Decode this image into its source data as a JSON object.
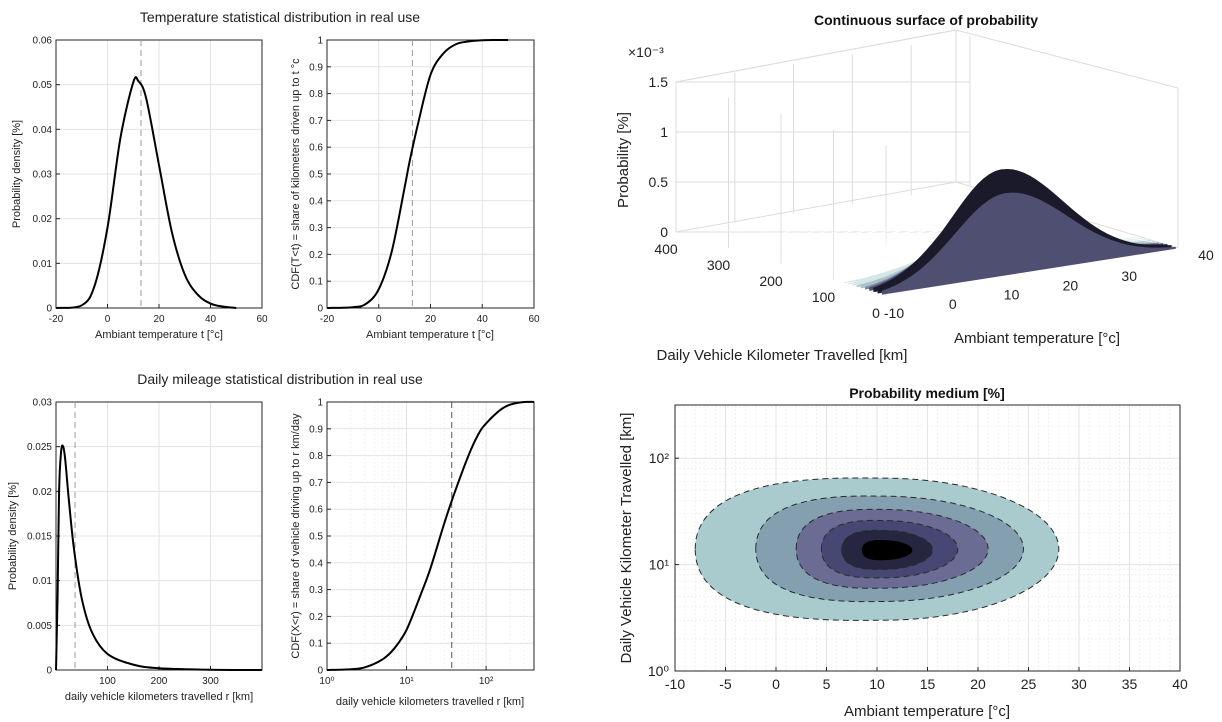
{
  "chart_data": [
    {
      "id": "temp",
      "type": "line",
      "title": "Temperature statistical distribution in real use",
      "panels": [
        {
          "id": "pdf",
          "xlabel": "Ambiant temperature t [°c]",
          "ylabel": "Probability density [%]",
          "xlim": [
            -20,
            60
          ],
          "ylim": [
            0,
            0.06
          ],
          "xticks": [
            "-20",
            "0",
            "20",
            "40",
            "60"
          ],
          "yticks": [
            "0",
            "0.01",
            "0.02",
            "0.03",
            "0.04",
            "0.05",
            "0.06"
          ],
          "x": [
            -20,
            -10,
            -5,
            0,
            5,
            10,
            12,
            15,
            20,
            25,
            30,
            35,
            40,
            45,
            50
          ],
          "y": [
            0,
            0.0006,
            0.005,
            0.018,
            0.038,
            0.0505,
            0.0508,
            0.047,
            0.032,
            0.017,
            0.0075,
            0.003,
            0.001,
            0.0003,
            0
          ],
          "marker_x": 13
        },
        {
          "id": "cdf",
          "xlabel": "Ambiant temperature t [°c]",
          "ylabel": "CDF(T<t) = share of kilometers driven up to t °c",
          "xlim": [
            -20,
            60
          ],
          "ylim": [
            0,
            1
          ],
          "xticks": [
            "-20",
            "0",
            "20",
            "40",
            "60"
          ],
          "yticks": [
            "0",
            "0.1",
            "0.2",
            "0.3",
            "0.4",
            "0.5",
            "0.6",
            "0.7",
            "0.8",
            "0.9",
            "1"
          ],
          "x": [
            -20,
            -10,
            -5,
            0,
            5,
            10,
            12,
            15,
            20,
            25,
            30,
            35,
            40,
            45,
            50
          ],
          "y": [
            0,
            0.003,
            0.015,
            0.07,
            0.21,
            0.45,
            0.55,
            0.68,
            0.87,
            0.95,
            0.985,
            0.995,
            0.999,
            1,
            1
          ],
          "marker_x": 13
        }
      ]
    },
    {
      "id": "mileage",
      "type": "line",
      "title": "Daily mileage statistical distribution in real use",
      "panels": [
        {
          "id": "pdf",
          "xlabel": "daily vehicle kilometers travelled r [km]",
          "ylabel": "Probability density [%]",
          "xlim": [
            0,
            400
          ],
          "ylim": [
            0,
            0.03
          ],
          "xticks": [
            "100",
            "200",
            "300"
          ],
          "yticks": [
            "0",
            "0.005",
            "0.01",
            "0.015",
            "0.02",
            "0.025",
            "0.03"
          ],
          "x": [
            0,
            3,
            6,
            10,
            14,
            18,
            25,
            35,
            50,
            70,
            100,
            150,
            200,
            300,
            400
          ],
          "y": [
            0,
            0.008,
            0.02,
            0.0245,
            0.025,
            0.0235,
            0.019,
            0.0135,
            0.008,
            0.0042,
            0.0018,
            0.0006,
            0.0002,
            3e-05,
            0
          ],
          "marker_x": 37
        },
        {
          "id": "cdf",
          "scale_x": "log",
          "xlabel": "daily vehicle kilometers travelled r [km]",
          "ylabel": "CDF(X<r) = share of vehicle driving up to r km/day",
          "xlim": [
            1,
            400
          ],
          "ylim": [
            0,
            1
          ],
          "xticks": [
            "10⁰",
            "10¹",
            "10²"
          ],
          "yticks": [
            "0",
            "0.1",
            "0.2",
            "0.3",
            "0.4",
            "0.5",
            "0.6",
            "0.7",
            "0.8",
            "0.9",
            "1"
          ],
          "x": [
            1,
            2,
            3,
            5,
            7,
            10,
            15,
            20,
            30,
            40,
            60,
            80,
            100,
            150,
            200,
            300,
            400
          ],
          "y": [
            0,
            0.003,
            0.01,
            0.04,
            0.08,
            0.15,
            0.28,
            0.38,
            0.55,
            0.66,
            0.8,
            0.88,
            0.92,
            0.97,
            0.99,
            1,
            1
          ],
          "marker_x": 37
        }
      ]
    },
    {
      "id": "surface",
      "type": "surface",
      "title": "Continuous surface of probability",
      "zlabel": "Probability [%]",
      "xlabel": "Ambiant temperature [°c]",
      "ylabel": "Daily Vehicle Kilometer Travelled [km]",
      "exponent": "×10⁻³",
      "zticks": [
        "0",
        "0.5",
        "1",
        "1.5"
      ],
      "xticks": [
        "-10",
        "0",
        "10",
        "20",
        "30",
        "40"
      ],
      "yticks": [
        "0",
        "100",
        "200",
        "300",
        "400"
      ],
      "peak_value": 1.05,
      "peak_at": {
        "t": 11,
        "r": 15
      },
      "colors": [
        "#ffffff",
        "#d6e6e6",
        "#a9c4c9",
        "#7c8ca4",
        "#4f4f71",
        "#1a1a2a"
      ]
    },
    {
      "id": "contour",
      "type": "contour",
      "title": "Probability medium [%]",
      "xlabel": "Ambiant temperature [°c]",
      "ylabel": "Daily Vehicle Kilometer Travelled [km]",
      "xlim": [
        -10,
        40
      ],
      "ylim_log10": [
        0,
        2.5
      ],
      "xticks": [
        "-10",
        "-5",
        "0",
        "5",
        "10",
        "15",
        "20",
        "25",
        "30",
        "35",
        "40"
      ],
      "yticks": [
        "10⁰",
        "10¹",
        "10²"
      ],
      "levels": [
        {
          "t_min": -8,
          "t_max": 28,
          "r_min": 3,
          "r_max": 65,
          "color": "#aacbce"
        },
        {
          "t_min": -2,
          "t_max": 24.5,
          "r_min": 4.5,
          "r_max": 44,
          "color": "#84a0b0"
        },
        {
          "t_min": 2,
          "t_max": 21,
          "r_min": 6,
          "r_max": 33,
          "color": "#6a6c93"
        },
        {
          "t_min": 4.5,
          "t_max": 18,
          "r_min": 7.5,
          "r_max": 26,
          "color": "#464772"
        },
        {
          "t_min": 6.5,
          "t_max": 15.5,
          "r_min": 9,
          "r_max": 21,
          "color": "#262641"
        },
        {
          "t_min": 8.5,
          "t_max": 13.5,
          "r_min": 11,
          "r_max": 17,
          "color": "#000000"
        }
      ]
    }
  ]
}
